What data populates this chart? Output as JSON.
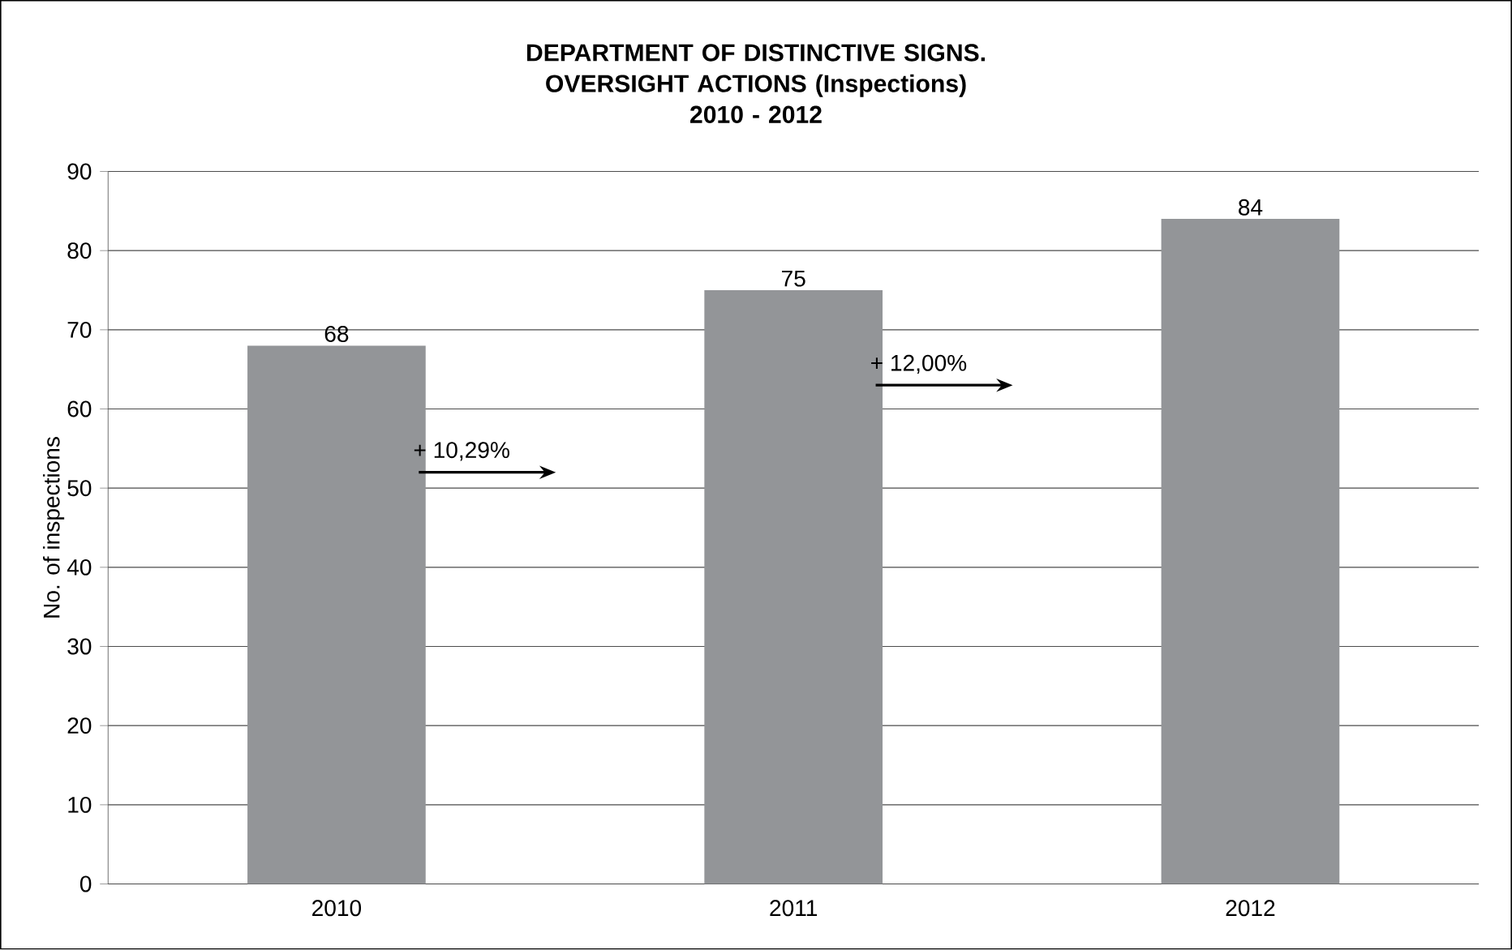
{
  "chart_data": {
    "type": "bar",
    "title": "DEPARTMENT OF DISTINCTIVE SIGNS. OVERSIGHT ACTIONS (Inspections)",
    "subtitle": "2010 - 2012",
    "ylabel": "No. of inspections",
    "categories": [
      "2010",
      "2011",
      "2012"
    ],
    "values": [
      68,
      75,
      84
    ],
    "color": "#939598",
    "ylim": [
      0,
      90
    ],
    "yticks": [
      0,
      10,
      20,
      30,
      40,
      50,
      60,
      70,
      80,
      90
    ],
    "grid": "y",
    "data_labels": true,
    "annotations": [
      "+ 10,29%",
      "+ 12,00%"
    ]
  }
}
